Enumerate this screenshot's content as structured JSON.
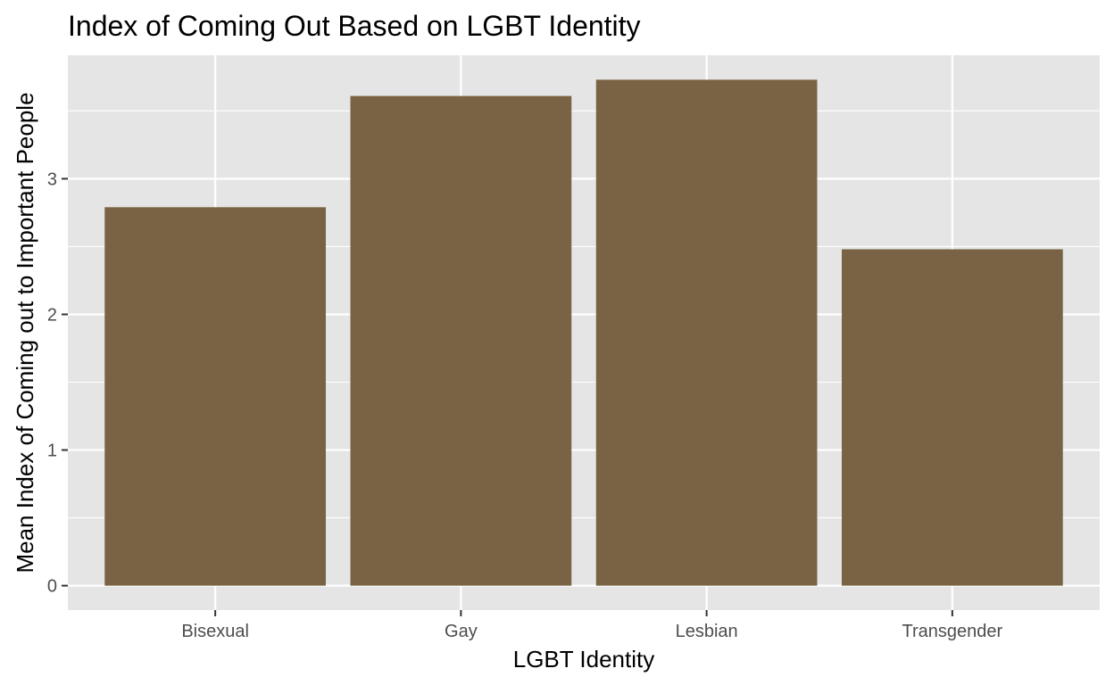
{
  "chart_data": {
    "type": "bar",
    "title": "Index of Coming Out Based on LGBT Identity",
    "xlabel": "LGBT Identity",
    "ylabel": "Mean Index of Coming out to Important People",
    "categories": [
      "Bisexual",
      "Gay",
      "Lesbian",
      "Transgender"
    ],
    "values": [
      2.79,
      3.61,
      3.73,
      2.48
    ],
    "y_ticks": [
      0,
      1,
      2,
      3
    ],
    "ylim": [
      -0.18,
      3.91
    ],
    "grid": true,
    "legend": "none"
  },
  "colors": {
    "bar_fill": "#7a6344",
    "panel_background": "#e5e5e5",
    "grid_line": "#ffffff",
    "tick_text": "#4d4d4d",
    "tick_mark": "#333333"
  }
}
